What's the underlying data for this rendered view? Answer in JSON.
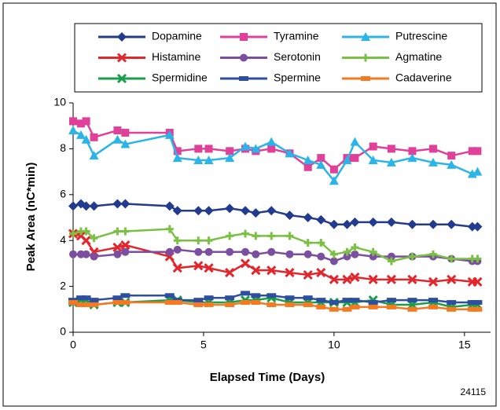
{
  "chart_data": {
    "type": "line",
    "x_label": "Elapsed Time (Days)",
    "y_label": "Peak Area (nC*min)",
    "annotation": "24115",
    "x": [
      0,
      0.3,
      0.5,
      0.8,
      1.7,
      2,
      3.7,
      4,
      4.8,
      5.2,
      6,
      6.6,
      7,
      7.6,
      8.3,
      9,
      9.5,
      10,
      10.5,
      10.8,
      11.5,
      12.2,
      13,
      13.8,
      14.5,
      15.3,
      15.5
    ],
    "xlim": [
      0,
      16
    ],
    "xticks": [
      0,
      5,
      10,
      15
    ],
    "ylim": [
      0,
      10
    ],
    "yticks": [
      0,
      2,
      4,
      6,
      8,
      10
    ],
    "legend_columns": 3,
    "series": [
      {
        "name": "Dopamine",
        "color": "#233b8e",
        "marker": "diamond",
        "values": [
          5.5,
          5.6,
          5.5,
          5.5,
          5.6,
          5.6,
          5.5,
          5.3,
          5.3,
          5.3,
          5.4,
          5.3,
          5.2,
          5.3,
          5.1,
          5.0,
          4.9,
          4.7,
          4.7,
          4.8,
          4.8,
          4.8,
          4.7,
          4.7,
          4.7,
          4.6,
          4.6
        ]
      },
      {
        "name": "Tyramine",
        "color": "#e0409a",
        "marker": "square",
        "values": [
          9.2,
          9.1,
          9.2,
          8.5,
          8.8,
          8.7,
          8.7,
          7.9,
          8.0,
          8.0,
          7.9,
          8.0,
          7.9,
          8.0,
          7.8,
          7.2,
          7.6,
          7.1,
          7.6,
          7.6,
          8.1,
          8.0,
          7.9,
          8.0,
          7.7,
          7.9,
          7.9
        ]
      },
      {
        "name": "Putrescine",
        "color": "#2ab4e8",
        "marker": "triangle",
        "values": [
          8.8,
          8.6,
          8.4,
          7.7,
          8.4,
          8.2,
          8.6,
          7.6,
          7.5,
          7.5,
          7.6,
          8.1,
          8.0,
          8.3,
          7.8,
          7.5,
          7.3,
          6.6,
          7.5,
          8.3,
          7.5,
          7.4,
          7.6,
          7.4,
          7.3,
          6.9,
          7.0
        ]
      },
      {
        "name": "Histamine",
        "color": "#e3262b",
        "marker": "x",
        "values": [
          4.3,
          4.2,
          4.0,
          3.5,
          3.7,
          3.8,
          3.3,
          2.8,
          2.9,
          2.8,
          2.6,
          3.0,
          2.7,
          2.7,
          2.6,
          2.5,
          2.6,
          2.3,
          2.3,
          2.4,
          2.3,
          2.3,
          2.3,
          2.2,
          2.3,
          2.2,
          2.2
        ]
      },
      {
        "name": "Serotonin",
        "color": "#7b4ea0",
        "marker": "circle",
        "values": [
          3.4,
          3.4,
          3.4,
          3.3,
          3.4,
          3.5,
          3.5,
          3.6,
          3.5,
          3.5,
          3.5,
          3.5,
          3.4,
          3.5,
          3.4,
          3.4,
          3.3,
          3.1,
          3.3,
          3.4,
          3.3,
          3.3,
          3.3,
          3.3,
          3.2,
          3.1,
          3.1
        ]
      },
      {
        "name": "Agmatine",
        "color": "#7ac143",
        "marker": "plus",
        "values": [
          4.3,
          4.4,
          4.4,
          4.1,
          4.4,
          4.4,
          4.5,
          4.0,
          4.0,
          4.0,
          4.2,
          4.3,
          4.2,
          4.2,
          4.2,
          3.9,
          3.9,
          3.4,
          3.5,
          3.7,
          3.5,
          3.1,
          3.3,
          3.4,
          3.2,
          3.2,
          3.2
        ]
      },
      {
        "name": "Spermidine",
        "color": "#1a9e4a",
        "marker": "x",
        "values": [
          1.3,
          1.4,
          1.4,
          1.2,
          1.3,
          1.3,
          1.4,
          1.4,
          1.3,
          1.3,
          1.3,
          1.4,
          1.4,
          1.5,
          1.3,
          1.3,
          1.3,
          1.3,
          1.3,
          1.3,
          1.4,
          1.2,
          1.2,
          1.3,
          1.1,
          1.2,
          1.2
        ]
      },
      {
        "name": "Spermine",
        "color": "#2e4fa0",
        "marker": "bar",
        "values": [
          1.4,
          1.5,
          1.5,
          1.4,
          1.5,
          1.6,
          1.6,
          1.4,
          1.4,
          1.5,
          1.5,
          1.7,
          1.6,
          1.6,
          1.5,
          1.5,
          1.4,
          1.3,
          1.4,
          1.4,
          1.3,
          1.4,
          1.4,
          1.4,
          1.3,
          1.3,
          1.3
        ]
      },
      {
        "name": "Cadaverine",
        "color": "#f47920",
        "marker": "bar",
        "values": [
          1.3,
          1.2,
          1.2,
          1.2,
          1.3,
          1.3,
          1.3,
          1.3,
          1.2,
          1.2,
          1.2,
          1.3,
          1.3,
          1.2,
          1.2,
          1.2,
          1.1,
          1.0,
          1.0,
          1.1,
          1.1,
          1.1,
          1.0,
          1.1,
          1.0,
          1.0,
          1.0
        ]
      }
    ]
  }
}
